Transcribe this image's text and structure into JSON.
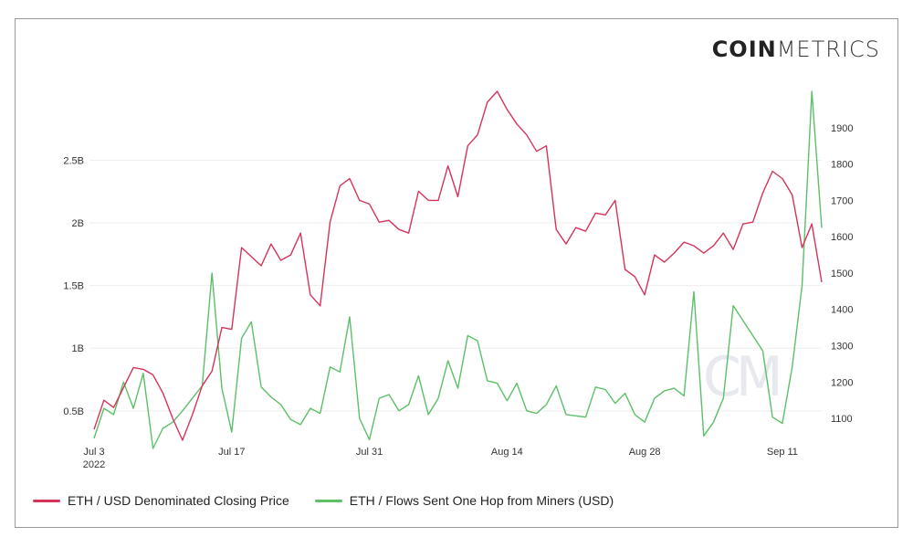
{
  "brand": {
    "bold": "COIN",
    "light": "METRICS"
  },
  "watermark": "CM",
  "chart_data": {
    "type": "line",
    "title": "",
    "x_tick_labels": [
      {
        "date": "2022-07-03",
        "label": "Jul 3",
        "sub": "2022"
      },
      {
        "date": "2022-07-17",
        "label": "Jul 17",
        "sub": ""
      },
      {
        "date": "2022-07-31",
        "label": "Jul 31",
        "sub": ""
      },
      {
        "date": "2022-08-14",
        "label": "Aug 14",
        "sub": ""
      },
      {
        "date": "2022-08-28",
        "label": "Aug 28",
        "sub": ""
      },
      {
        "date": "2022-09-11",
        "label": "Sep 11",
        "sub": ""
      }
    ],
    "x_range": [
      "2022-07-03",
      "2022-09-15"
    ],
    "y_left": {
      "ticks": [
        "0.5B",
        "1B",
        "1.5B",
        "2B",
        "2.5B"
      ],
      "tick_values": [
        0.5,
        1.0,
        1.5,
        2.0,
        2.5
      ],
      "ylim": [
        0.28,
        3.05
      ],
      "unit": "B"
    },
    "y_right": {
      "ticks": [
        "1100",
        "1200",
        "1300",
        "1400",
        "1500",
        "1600",
        "1700",
        "1800",
        "1900"
      ],
      "tick_values": [
        1100,
        1200,
        1300,
        1400,
        1500,
        1600,
        1700,
        1800,
        1900
      ],
      "ylim": [
        1045,
        2000
      ]
    },
    "grid": true,
    "legend_position": "bottom",
    "series": [
      {
        "name": "ETH / USD Denominated Closing Price",
        "axis": "right",
        "color": "#d6335a",
        "values": [
          [
            "2022-07-03",
            1070
          ],
          [
            "2022-07-04",
            1150
          ],
          [
            "2022-07-05",
            1130
          ],
          [
            "2022-07-06",
            1185
          ],
          [
            "2022-07-07",
            1240
          ],
          [
            "2022-07-08",
            1235
          ],
          [
            "2022-07-09",
            1220
          ],
          [
            "2022-07-10",
            1170
          ],
          [
            "2022-07-11",
            1100
          ],
          [
            "2022-07-12",
            1040
          ],
          [
            "2022-07-13",
            1110
          ],
          [
            "2022-07-14",
            1190
          ],
          [
            "2022-07-15",
            1230
          ],
          [
            "2022-07-16",
            1350
          ],
          [
            "2022-07-17",
            1345
          ],
          [
            "2022-07-18",
            1570
          ],
          [
            "2022-07-19",
            1545
          ],
          [
            "2022-07-20",
            1520
          ],
          [
            "2022-07-21",
            1580
          ],
          [
            "2022-07-22",
            1535
          ],
          [
            "2022-07-23",
            1550
          ],
          [
            "2022-07-24",
            1610
          ],
          [
            "2022-07-25",
            1440
          ],
          [
            "2022-07-26",
            1410
          ],
          [
            "2022-07-27",
            1640
          ],
          [
            "2022-07-28",
            1740
          ],
          [
            "2022-07-29",
            1760
          ],
          [
            "2022-07-30",
            1700
          ],
          [
            "2022-07-31",
            1690
          ],
          [
            "2022-08-01",
            1640
          ],
          [
            "2022-08-02",
            1645
          ],
          [
            "2022-08-03",
            1620
          ],
          [
            "2022-08-04",
            1610
          ],
          [
            "2022-08-05",
            1725
          ],
          [
            "2022-08-06",
            1700
          ],
          [
            "2022-08-07",
            1700
          ],
          [
            "2022-08-08",
            1795
          ],
          [
            "2022-08-09",
            1710
          ],
          [
            "2022-08-10",
            1850
          ],
          [
            "2022-08-11",
            1880
          ],
          [
            "2022-08-12",
            1970
          ],
          [
            "2022-08-13",
            2000
          ],
          [
            "2022-08-14",
            1950
          ],
          [
            "2022-08-15",
            1910
          ],
          [
            "2022-08-16",
            1880
          ],
          [
            "2022-08-17",
            1835
          ],
          [
            "2022-08-18",
            1850
          ],
          [
            "2022-08-19",
            1620
          ],
          [
            "2022-08-20",
            1580
          ],
          [
            "2022-08-21",
            1625
          ],
          [
            "2022-08-22",
            1615
          ],
          [
            "2022-08-23",
            1665
          ],
          [
            "2022-08-24",
            1660
          ],
          [
            "2022-08-25",
            1700
          ],
          [
            "2022-08-26",
            1510
          ],
          [
            "2022-08-27",
            1490
          ],
          [
            "2022-08-28",
            1440
          ],
          [
            "2022-08-29",
            1550
          ],
          [
            "2022-08-30",
            1530
          ],
          [
            "2022-08-31",
            1555
          ],
          [
            "2022-09-01",
            1585
          ],
          [
            "2022-09-02",
            1575
          ],
          [
            "2022-09-03",
            1555
          ],
          [
            "2022-09-04",
            1575
          ],
          [
            "2022-09-05",
            1610
          ],
          [
            "2022-09-06",
            1565
          ],
          [
            "2022-09-07",
            1635
          ],
          [
            "2022-09-08",
            1640
          ],
          [
            "2022-09-09",
            1720
          ],
          [
            "2022-09-10",
            1780
          ],
          [
            "2022-09-11",
            1760
          ],
          [
            "2022-09-12",
            1715
          ],
          [
            "2022-09-13",
            1570
          ],
          [
            "2022-09-14",
            1635
          ],
          [
            "2022-09-15",
            1475
          ]
        ]
      },
      {
        "name": "ETH / Flows Sent One Hop from Miners (USD)",
        "axis": "left",
        "color": "#5cc068",
        "values": [
          [
            "2022-07-03",
            0.28
          ],
          [
            "2022-07-04",
            0.52
          ],
          [
            "2022-07-05",
            0.47
          ],
          [
            "2022-07-06",
            0.73
          ],
          [
            "2022-07-07",
            0.52
          ],
          [
            "2022-07-08",
            0.8
          ],
          [
            "2022-07-09",
            0.2
          ],
          [
            "2022-07-10",
            0.36
          ],
          [
            "2022-07-11",
            0.41
          ],
          [
            "2022-07-12",
            0.5
          ],
          [
            "2022-07-13",
            0.6
          ],
          [
            "2022-07-14",
            0.7
          ],
          [
            "2022-07-15",
            1.6
          ],
          [
            "2022-07-16",
            0.68
          ],
          [
            "2022-07-17",
            0.33
          ],
          [
            "2022-07-18",
            1.08
          ],
          [
            "2022-07-19",
            1.21
          ],
          [
            "2022-07-20",
            0.69
          ],
          [
            "2022-07-21",
            0.61
          ],
          [
            "2022-07-22",
            0.55
          ],
          [
            "2022-07-23",
            0.43
          ],
          [
            "2022-07-24",
            0.39
          ],
          [
            "2022-07-25",
            0.52
          ],
          [
            "2022-07-26",
            0.48
          ],
          [
            "2022-07-27",
            0.85
          ],
          [
            "2022-07-28",
            0.81
          ],
          [
            "2022-07-29",
            1.25
          ],
          [
            "2022-07-30",
            0.44
          ],
          [
            "2022-07-31",
            0.27
          ],
          [
            "2022-08-01",
            0.6
          ],
          [
            "2022-08-02",
            0.63
          ],
          [
            "2022-08-03",
            0.5
          ],
          [
            "2022-08-04",
            0.55
          ],
          [
            "2022-08-05",
            0.78
          ],
          [
            "2022-08-06",
            0.47
          ],
          [
            "2022-08-07",
            0.6
          ],
          [
            "2022-08-08",
            0.9
          ],
          [
            "2022-08-09",
            0.68
          ],
          [
            "2022-08-10",
            1.1
          ],
          [
            "2022-08-11",
            1.06
          ],
          [
            "2022-08-12",
            0.74
          ],
          [
            "2022-08-13",
            0.72
          ],
          [
            "2022-08-14",
            0.58
          ],
          [
            "2022-08-15",
            0.72
          ],
          [
            "2022-08-16",
            0.5
          ],
          [
            "2022-08-17",
            0.48
          ],
          [
            "2022-08-18",
            0.55
          ],
          [
            "2022-08-19",
            0.7
          ],
          [
            "2022-08-20",
            0.47
          ],
          [
            "2022-08-21",
            0.46
          ],
          [
            "2022-08-22",
            0.45
          ],
          [
            "2022-08-23",
            0.69
          ],
          [
            "2022-08-24",
            0.67
          ],
          [
            "2022-08-25",
            0.56
          ],
          [
            "2022-08-26",
            0.64
          ],
          [
            "2022-08-27",
            0.47
          ],
          [
            "2022-08-28",
            0.41
          ],
          [
            "2022-08-29",
            0.6
          ],
          [
            "2022-08-30",
            0.66
          ],
          [
            "2022-08-31",
            0.68
          ],
          [
            "2022-09-01",
            0.62
          ],
          [
            "2022-09-02",
            1.45
          ],
          [
            "2022-09-03",
            0.3
          ],
          [
            "2022-09-04",
            0.41
          ],
          [
            "2022-09-05",
            0.6
          ],
          [
            "2022-09-06",
            1.34
          ],
          [
            "2022-09-07",
            1.22
          ],
          [
            "2022-09-08",
            1.1
          ],
          [
            "2022-09-09",
            0.98
          ],
          [
            "2022-09-10",
            0.45
          ],
          [
            "2022-09-11",
            0.4
          ],
          [
            "2022-09-12",
            0.85
          ],
          [
            "2022-09-13",
            1.5
          ],
          [
            "2022-09-14",
            3.05
          ],
          [
            "2022-09-15",
            1.96
          ]
        ]
      }
    ]
  }
}
